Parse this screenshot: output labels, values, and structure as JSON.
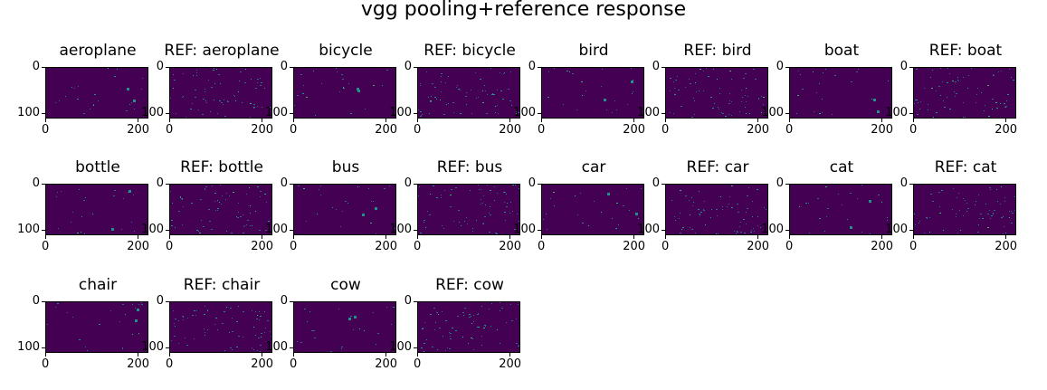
{
  "figure": {
    "title": "vgg pooling+reference response"
  },
  "chart_data": {
    "type": "heatmap",
    "colormap": "viridis",
    "background_color": "#440154",
    "highlight_colors": [
      "#31688e",
      "#21918c",
      "#35b779"
    ],
    "x_ticks": [
      "0",
      "200"
    ],
    "y_ticks": [
      "0",
      "100"
    ],
    "panels": [
      {
        "title": "aeroplane"
      },
      {
        "title": "REF: aeroplane"
      },
      {
        "title": "bicycle"
      },
      {
        "title": "REF: bicycle"
      },
      {
        "title": "bird"
      },
      {
        "title": "REF: bird"
      },
      {
        "title": "boat"
      },
      {
        "title": "REF: boat"
      },
      {
        "title": "bottle"
      },
      {
        "title": "REF: bottle"
      },
      {
        "title": "bus"
      },
      {
        "title": "REF: bus"
      },
      {
        "title": "car"
      },
      {
        "title": "REF: car"
      },
      {
        "title": "cat"
      },
      {
        "title": "REF: cat"
      },
      {
        "title": "chair"
      },
      {
        "title": "REF: chair"
      },
      {
        "title": "cow"
      },
      {
        "title": "REF: cow"
      }
    ]
  }
}
